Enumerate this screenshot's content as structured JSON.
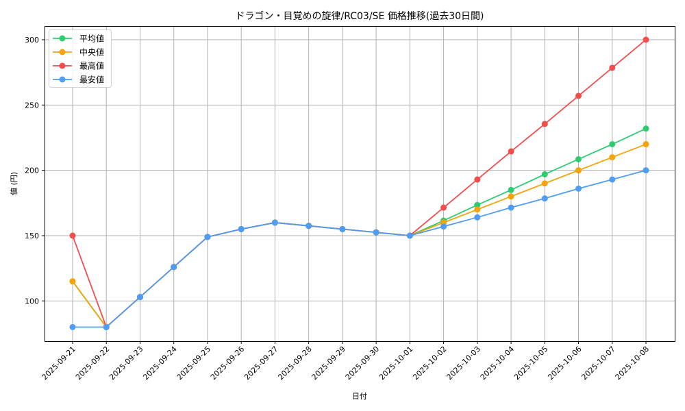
{
  "chart_data": {
    "type": "line",
    "title": "ドラゴン・目覚めの旋律/RC03/SE 価格推移(過去30日間)",
    "xlabel": "日付",
    "ylabel": "値 (円)",
    "ylim": [
      70,
      311
    ],
    "yticks": [
      100,
      150,
      200,
      250,
      300
    ],
    "grid": true,
    "legend_position": "upper left",
    "categories": [
      "2025-09-21",
      "2025-09-22",
      "2025-09-23",
      "2025-09-24",
      "2025-09-25",
      "2025-09-26",
      "2025-09-27",
      "2025-09-28",
      "2025-09-29",
      "2025-09-30",
      "2025-10-01",
      "2025-10-02",
      "2025-10-03",
      "2025-10-04",
      "2025-10-05",
      "2025-10-06",
      "2025-10-07",
      "2025-10-08"
    ],
    "series": [
      {
        "name": "平均値",
        "color": "#2ecc71",
        "values": [
          115,
          80,
          103,
          126,
          149,
          155,
          160,
          157.5,
          155,
          152.5,
          150,
          161.5,
          173.5,
          185,
          197,
          208.5,
          220,
          232
        ]
      },
      {
        "name": "中央値",
        "color": "#f5a30a",
        "values": [
          115,
          80,
          103,
          126,
          149,
          155,
          160,
          157.5,
          155,
          152.5,
          150,
          160,
          170,
          180,
          190,
          200,
          210,
          220
        ]
      },
      {
        "name": "最高値",
        "color": "#f24d4d",
        "values": [
          150,
          80,
          103,
          126,
          149,
          155,
          160,
          157.5,
          155,
          152.5,
          150,
          171.5,
          193,
          214.5,
          235.5,
          257,
          278.5,
          300
        ]
      },
      {
        "name": "最安値",
        "color": "#4f9cf5",
        "values": [
          80,
          80,
          103,
          126,
          149,
          155,
          160,
          157.5,
          155,
          152.5,
          150,
          157,
          164,
          171.5,
          178.5,
          186,
          193,
          200
        ]
      }
    ]
  }
}
